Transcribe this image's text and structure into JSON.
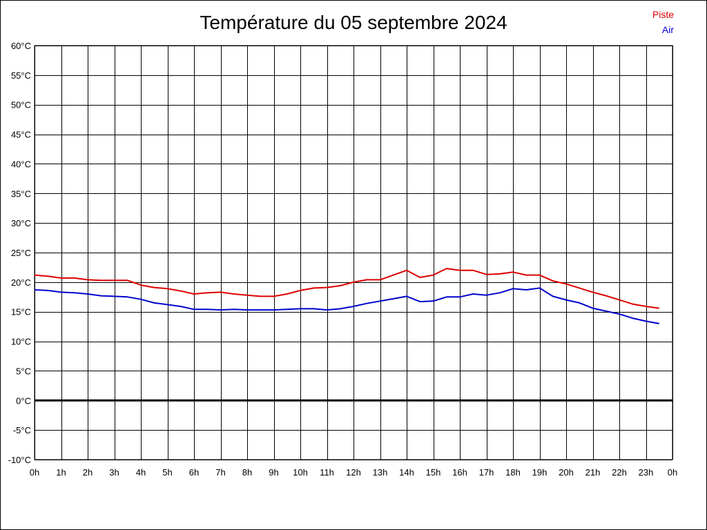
{
  "colors": {
    "piste": "#dd0000",
    "air": "#0000cc",
    "grid": "#000000"
  },
  "chart_data": {
    "type": "line",
    "title": "Température du 05 septembre 2024",
    "xlabel": "",
    "ylabel": "",
    "ylim": [
      -10,
      60
    ],
    "xlim": [
      0,
      24
    ],
    "grid": true,
    "legend_position": "top-right",
    "y_ticks": [
      -10,
      -5,
      0,
      5,
      10,
      15,
      20,
      25,
      30,
      35,
      40,
      45,
      50,
      55,
      60
    ],
    "y_tick_labels": [
      "-10°C",
      "-5°C",
      "0°C",
      "5°C",
      "10°C",
      "15°C",
      "20°C",
      "25°C",
      "30°C",
      "35°C",
      "40°C",
      "45°C",
      "50°C",
      "55°C",
      "60°C"
    ],
    "x_ticks": [
      0,
      1,
      2,
      3,
      4,
      5,
      6,
      7,
      8,
      9,
      10,
      11,
      12,
      13,
      14,
      15,
      16,
      17,
      18,
      19,
      20,
      21,
      22,
      23,
      24
    ],
    "x_tick_labels": [
      "0h",
      "1h",
      "2h",
      "3h",
      "4h",
      "5h",
      "6h",
      "7h",
      "8h",
      "9h",
      "10h",
      "11h",
      "12h",
      "13h",
      "14h",
      "15h",
      "16h",
      "17h",
      "18h",
      "19h",
      "20h",
      "21h",
      "22h",
      "23h",
      "0h"
    ],
    "series": [
      {
        "name": "Piste",
        "x": [
          0,
          0.5,
          1,
          1.5,
          2,
          2.5,
          3,
          3.5,
          4,
          4.5,
          5,
          5.5,
          6,
          6.5,
          7,
          7.5,
          8,
          8.5,
          9,
          9.5,
          10,
          10.5,
          11,
          11.5,
          12,
          12.5,
          13,
          13.5,
          14,
          14.5,
          15,
          15.5,
          16,
          16.5,
          17,
          17.5,
          18,
          18.5,
          19,
          19.5,
          20,
          20.5,
          21,
          21.5,
          22,
          22.5,
          23,
          23.5
        ],
        "y": [
          21.2,
          21.0,
          20.7,
          20.7,
          20.4,
          20.3,
          20.3,
          20.3,
          19.5,
          19.1,
          18.9,
          18.5,
          18.0,
          18.2,
          18.3,
          18.0,
          17.8,
          17.6,
          17.6,
          18.0,
          18.6,
          19.0,
          19.1,
          19.4,
          20.0,
          20.4,
          20.4,
          21.2,
          22.0,
          20.8,
          21.2,
          22.3,
          22.0,
          22.0,
          21.3,
          21.4,
          21.7,
          21.2,
          21.2,
          20.2,
          19.7,
          19.0,
          18.3,
          17.7,
          17.0,
          16.3,
          15.9,
          15.6
        ]
      },
      {
        "name": "Air",
        "x": [
          0,
          0.5,
          1,
          1.5,
          2,
          2.5,
          3,
          3.5,
          4,
          4.5,
          5,
          5.5,
          6,
          6.5,
          7,
          7.5,
          8,
          8.5,
          9,
          9.5,
          10,
          10.5,
          11,
          11.5,
          12,
          12.5,
          13,
          13.5,
          14,
          14.5,
          15,
          15.5,
          16,
          16.5,
          17,
          17.5,
          18,
          18.5,
          19,
          19.5,
          20,
          20.5,
          21,
          21.5,
          22,
          22.5,
          23,
          23.5
        ],
        "y": [
          18.7,
          18.6,
          18.3,
          18.2,
          18.0,
          17.7,
          17.6,
          17.5,
          17.1,
          16.5,
          16.2,
          15.9,
          15.4,
          15.4,
          15.3,
          15.4,
          15.3,
          15.3,
          15.3,
          15.4,
          15.5,
          15.5,
          15.3,
          15.5,
          15.9,
          16.4,
          16.8,
          17.2,
          17.6,
          16.7,
          16.8,
          17.5,
          17.5,
          18.0,
          17.8,
          18.2,
          18.9,
          18.7,
          19.0,
          17.6,
          17.0,
          16.5,
          15.6,
          15.1,
          14.6,
          13.9,
          13.4,
          13.0
        ]
      }
    ]
  }
}
